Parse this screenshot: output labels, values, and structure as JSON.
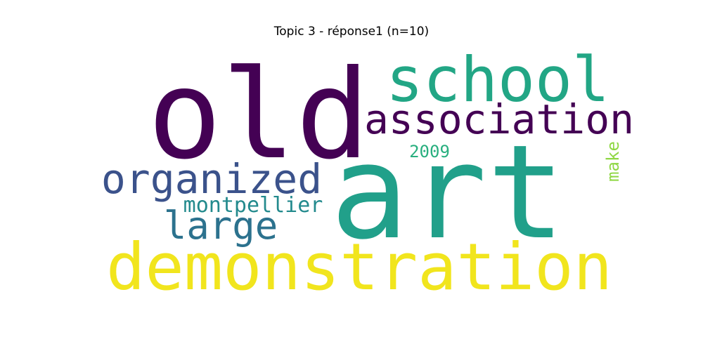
{
  "figure": {
    "title": "Topic 3 - réponse1 (n=10)"
  },
  "words": [
    {
      "id": "old",
      "text": "old",
      "color": "#440154",
      "rotate": 0
    },
    {
      "id": "art",
      "text": "art",
      "color": "#21a08a",
      "rotate": 0
    },
    {
      "id": "school",
      "text": "school",
      "color": "#22a685",
      "rotate": 0
    },
    {
      "id": "association",
      "text": "association",
      "color": "#440154",
      "rotate": 0
    },
    {
      "id": "organized",
      "text": "organized",
      "color": "#3b528b",
      "rotate": 0
    },
    {
      "id": "demonstration",
      "text": "demonstration",
      "color": "#f1e51d",
      "rotate": 0
    },
    {
      "id": "large",
      "text": "large",
      "color": "#2c728e",
      "rotate": 0
    },
    {
      "id": "montpellier",
      "text": "montpellier",
      "color": "#238a8d",
      "rotate": 0
    },
    {
      "id": "2009",
      "text": "2009",
      "color": "#29af7f",
      "rotate": 0
    },
    {
      "id": "make",
      "text": "make",
      "color": "#8fd744",
      "rotate": -90
    }
  ]
}
